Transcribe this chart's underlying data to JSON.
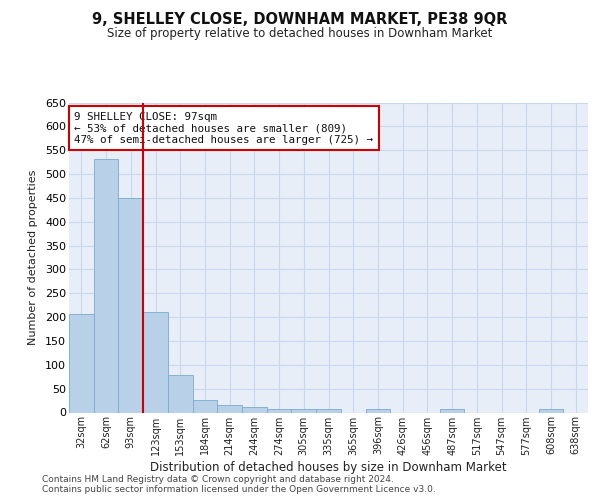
{
  "title": "9, SHELLEY CLOSE, DOWNHAM MARKET, PE38 9QR",
  "subtitle": "Size of property relative to detached houses in Downham Market",
  "xlabel": "Distribution of detached houses by size in Downham Market",
  "ylabel": "Number of detached properties",
  "footnote1": "Contains HM Land Registry data © Crown copyright and database right 2024.",
  "footnote2": "Contains public sector information licensed under the Open Government Licence v3.0.",
  "bar_labels": [
    "32sqm",
    "62sqm",
    "93sqm",
    "123sqm",
    "153sqm",
    "184sqm",
    "214sqm",
    "244sqm",
    "274sqm",
    "305sqm",
    "335sqm",
    "365sqm",
    "396sqm",
    "426sqm",
    "456sqm",
    "487sqm",
    "517sqm",
    "547sqm",
    "577sqm",
    "608sqm",
    "638sqm"
  ],
  "bar_values": [
    207,
    531,
    450,
    211,
    78,
    27,
    15,
    12,
    7,
    7,
    7,
    0,
    7,
    0,
    0,
    7,
    0,
    0,
    0,
    7,
    0
  ],
  "bar_color": "#b8d0e8",
  "bar_edge_color": "#7aaacf",
  "grid_color": "#c8d8ec",
  "bg_color": "#e8eef8",
  "vline_color": "#cc0000",
  "vline_x_idx": 2,
  "annotation_line1": "9 SHELLEY CLOSE: 97sqm",
  "annotation_line2": "← 53% of detached houses are smaller (809)",
  "annotation_line3": "47% of semi-detached houses are larger (725) →",
  "annotation_box_color": "#ffffff",
  "annotation_box_edge": "#cc0000",
  "ylim": [
    0,
    650
  ],
  "yticks": [
    0,
    50,
    100,
    150,
    200,
    250,
    300,
    350,
    400,
    450,
    500,
    550,
    600,
    650
  ]
}
